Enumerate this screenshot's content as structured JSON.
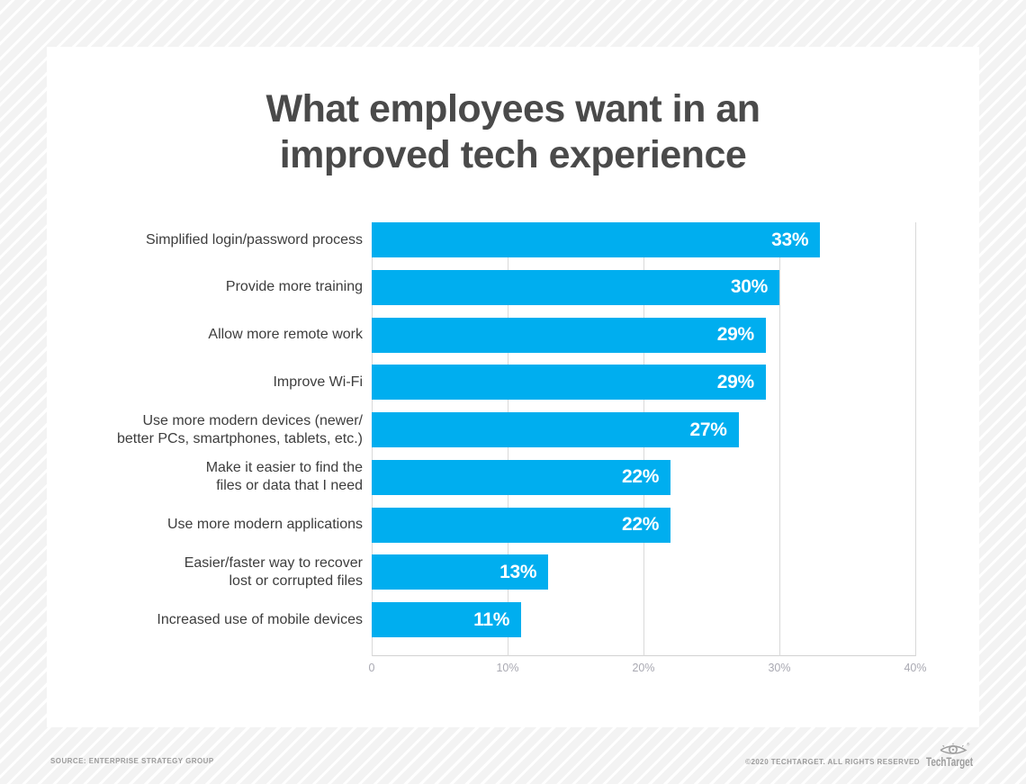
{
  "title": {
    "line1": "What employees want in an",
    "line2": "improved tech experience"
  },
  "chart_data": {
    "type": "bar",
    "orientation": "horizontal",
    "title": "What employees want in an improved tech experience",
    "categories": [
      "Simplified login/password process",
      "Provide more training",
      "Allow more remote work",
      "Improve Wi-Fi",
      "Use more modern devices (newer/ better PCs, smartphones, tablets, etc.)",
      "Make it easier to find the files or data that I need",
      "Use more modern applications",
      "Easier/faster way to recover lost or corrupted files",
      "Increased use of mobile devices"
    ],
    "category_display_lines": [
      [
        "Simplified login/password process"
      ],
      [
        "Provide more training"
      ],
      [
        "Allow more remote work"
      ],
      [
        "Improve Wi-Fi"
      ],
      [
        "Use more modern devices (newer/",
        "better PCs, smartphones, tablets, etc.)"
      ],
      [
        "Make it easier to find the",
        "files or data that I need"
      ],
      [
        "Use more modern applications"
      ],
      [
        "Easier/faster way to recover",
        "lost or corrupted files"
      ],
      [
        "Increased use of mobile devices"
      ]
    ],
    "values": [
      33,
      30,
      29,
      29,
      27,
      22,
      22,
      13,
      11
    ],
    "value_labels": [
      "33%",
      "30%",
      "29%",
      "29%",
      "27%",
      "22%",
      "22%",
      "13%",
      "11%"
    ],
    "xlim": [
      0,
      40
    ],
    "x_ticks": [
      {
        "value": 0,
        "label": "0"
      },
      {
        "value": 10,
        "label": "10%"
      },
      {
        "value": 20,
        "label": "20%"
      },
      {
        "value": 30,
        "label": "30%"
      },
      {
        "value": 40,
        "label": "40%"
      }
    ],
    "xlabel": "",
    "ylabel": "",
    "grid": true,
    "legend": "none"
  },
  "colors": {
    "bar": "#00aeef",
    "title_text": "#4a4a4a",
    "category_text": "#3d3d3d",
    "axis_text": "#a9a9b2",
    "gridline": "#d9d9d9",
    "footer_text": "#9b9b9b",
    "logo_gray": "#9d9d9d",
    "card_bg": "#ffffff"
  },
  "footer": {
    "source": "SOURCE: ENTERPRISE STRATEGY GROUP",
    "copyright": "©2020 TECHTARGET. ALL RIGHTS RESERVED",
    "logo_text": "TechTarget",
    "logo_icon": "eye-target-icon"
  }
}
